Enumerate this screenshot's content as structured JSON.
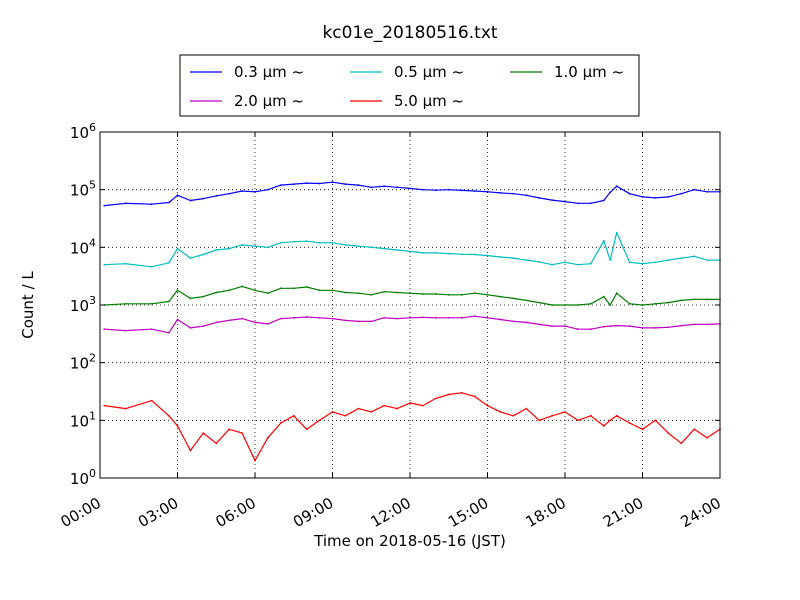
{
  "chart_data": {
    "type": "line",
    "title": "kc01e_20180516.txt",
    "xlabel": "Time on 2018-05-16 (JST)",
    "ylabel": "Count / L",
    "y_scale": "log",
    "ylim": [
      1,
      1000000
    ],
    "xlim": [
      "00:00",
      "24:00"
    ],
    "x_ticks": [
      "00:00",
      "03:00",
      "06:00",
      "09:00",
      "12:00",
      "15:00",
      "18:00",
      "21:00",
      "24:00"
    ],
    "y_ticks": [
      {
        "base": "10",
        "exp": "0"
      },
      {
        "base": "10",
        "exp": "1"
      },
      {
        "base": "10",
        "exp": "2"
      },
      {
        "base": "10",
        "exp": "3"
      },
      {
        "base": "10",
        "exp": "4"
      },
      {
        "base": "10",
        "exp": "5"
      },
      {
        "base": "10",
        "exp": "6"
      }
    ],
    "grid": true,
    "legend_position": "top-center",
    "x": [
      "00:10",
      "01:00",
      "02:00",
      "02:40",
      "03:00",
      "03:30",
      "04:00",
      "04:30",
      "05:00",
      "05:30",
      "06:00",
      "06:30",
      "07:00",
      "07:30",
      "08:00",
      "08:30",
      "09:00",
      "09:30",
      "10:00",
      "10:30",
      "11:00",
      "11:30",
      "12:00",
      "12:30",
      "13:00",
      "13:30",
      "14:00",
      "14:30",
      "15:00",
      "15:30",
      "16:00",
      "16:30",
      "17:00",
      "17:30",
      "18:00",
      "18:30",
      "19:00",
      "19:30",
      "19:45",
      "20:00",
      "20:30",
      "21:00",
      "21:30",
      "22:00",
      "22:30",
      "23:00",
      "23:30",
      "24:00"
    ],
    "series": [
      {
        "name": "0.3 μm ~",
        "color": "#0000ff",
        "values": [
          53000,
          58000,
          56000,
          60000,
          80000,
          65000,
          70000,
          78000,
          85000,
          95000,
          92000,
          100000,
          120000,
          125000,
          130000,
          128000,
          135000,
          125000,
          120000,
          110000,
          115000,
          110000,
          105000,
          100000,
          98000,
          100000,
          97000,
          95000,
          92000,
          88000,
          85000,
          80000,
          72000,
          66000,
          62000,
          58000,
          58000,
          65000,
          90000,
          115000,
          85000,
          75000,
          72000,
          75000,
          85000,
          100000,
          92000,
          92000
        ]
      },
      {
        "name": "0.5 μm ~",
        "color": "#00bfbf",
        "values": [
          5000,
          5200,
          4600,
          5400,
          9500,
          6500,
          7500,
          9000,
          9500,
          11000,
          10500,
          10000,
          12000,
          12500,
          12800,
          12000,
          12000,
          11000,
          10500,
          10000,
          9500,
          9000,
          8500,
          8000,
          8000,
          7800,
          7600,
          7500,
          7200,
          6800,
          6500,
          6000,
          5600,
          5000,
          5500,
          5000,
          5200,
          13000,
          6000,
          18000,
          5500,
          5200,
          5500,
          6000,
          6500,
          7000,
          6000,
          6000
        ]
      },
      {
        "name": "1.0 μm ~",
        "color": "#007f00",
        "values": [
          1000,
          1050,
          1050,
          1150,
          1800,
          1300,
          1400,
          1650,
          1800,
          2100,
          1800,
          1600,
          1950,
          1950,
          2050,
          1800,
          1800,
          1650,
          1600,
          1500,
          1700,
          1650,
          1600,
          1550,
          1550,
          1500,
          1500,
          1600,
          1500,
          1400,
          1300,
          1200,
          1100,
          1000,
          1000,
          1000,
          1050,
          1400,
          1000,
          1600,
          1050,
          1000,
          1050,
          1100,
          1200,
          1250,
          1250,
          1250
        ]
      },
      {
        "name": "2.0 μm ~",
        "color": "#bf00bf",
        "values": [
          380,
          360,
          380,
          330,
          560,
          400,
          430,
          500,
          540,
          580,
          500,
          470,
          580,
          600,
          620,
          600,
          580,
          540,
          520,
          520,
          600,
          580,
          600,
          610,
          600,
          600,
          600,
          640,
          600,
          560,
          520,
          500,
          460,
          430,
          430,
          380,
          380,
          420,
          430,
          440,
          430,
          400,
          400,
          410,
          440,
          460,
          460,
          470
        ]
      },
      {
        "name": "5.0 μm ~",
        "color": "#ff0000",
        "values": [
          18,
          16,
          22,
          12,
          8,
          3,
          6,
          4,
          7,
          6,
          2,
          5,
          9,
          12,
          7,
          10,
          14,
          12,
          16,
          14,
          18,
          16,
          20,
          18,
          24,
          28,
          30,
          26,
          18,
          14,
          12,
          16,
          10,
          12,
          14,
          10,
          12,
          8,
          10,
          12,
          9,
          7,
          10,
          6,
          4,
          7,
          5,
          7
        ]
      }
    ]
  }
}
